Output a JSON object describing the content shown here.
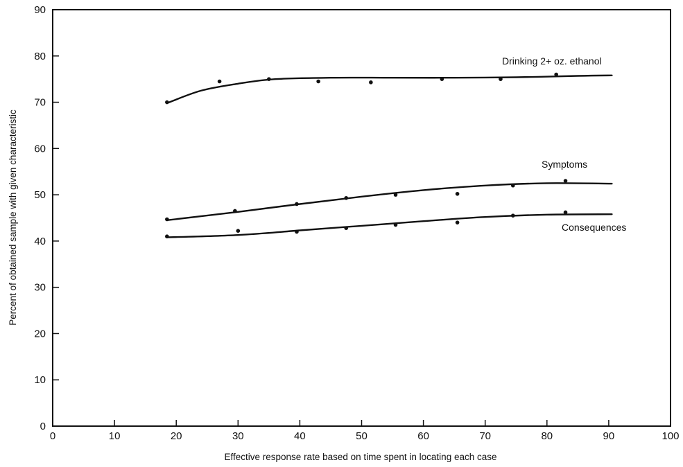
{
  "chart_data": {
    "type": "line",
    "title": "",
    "xlabel": "Effective response rate based on time spent in locating each case",
    "ylabel": "Percent of obtained sample with given characteristic",
    "xlim": [
      0,
      100
    ],
    "ylim": [
      0,
      90
    ],
    "xticks": [
      "0",
      "10",
      "20",
      "30",
      "40",
      "50",
      "60",
      "70",
      "80",
      "90",
      "100"
    ],
    "yticks": [
      "0",
      "10",
      "20",
      "30",
      "40",
      "50",
      "60",
      "70",
      "80",
      "90"
    ],
    "grid": false,
    "series": [
      {
        "name": "Drinking 2+ oz. ethanol",
        "points": [
          [
            18.5,
            70
          ],
          [
            27,
            74.5
          ],
          [
            35,
            75
          ],
          [
            43,
            74.5
          ],
          [
            51.5,
            74.3
          ],
          [
            63,
            75
          ],
          [
            72.5,
            75
          ],
          [
            81.5,
            76
          ]
        ],
        "fit": [
          [
            18.5,
            69.8
          ],
          [
            24,
            72.5
          ],
          [
            30,
            74
          ],
          [
            36,
            75
          ],
          [
            45,
            75.3
          ],
          [
            55,
            75.3
          ],
          [
            65,
            75.3
          ],
          [
            75,
            75.4
          ],
          [
            85,
            75.7
          ],
          [
            90.5,
            75.8
          ]
        ]
      },
      {
        "name": "Symptoms",
        "points": [
          [
            18.5,
            44.7
          ],
          [
            29.5,
            46.5
          ],
          [
            39.5,
            48
          ],
          [
            47.5,
            49.3
          ],
          [
            55.5,
            50
          ],
          [
            65.5,
            50.2
          ],
          [
            74.5,
            52
          ],
          [
            83,
            53
          ]
        ],
        "fit": [
          [
            18.5,
            44.5
          ],
          [
            30,
            46.3
          ],
          [
            40,
            48
          ],
          [
            50,
            49.6
          ],
          [
            60,
            51
          ],
          [
            70,
            52
          ],
          [
            80,
            52.5
          ],
          [
            90.5,
            52.4
          ]
        ]
      },
      {
        "name": "Consequences",
        "points": [
          [
            18.5,
            41
          ],
          [
            30,
            42.2
          ],
          [
            39.5,
            42
          ],
          [
            47.5,
            42.8
          ],
          [
            55.5,
            43.5
          ],
          [
            65.5,
            44
          ],
          [
            74.5,
            45.5
          ],
          [
            83,
            46.2
          ]
        ],
        "fit": [
          [
            18.5,
            40.8
          ],
          [
            30,
            41.3
          ],
          [
            40,
            42.3
          ],
          [
            50,
            43.3
          ],
          [
            60,
            44.3
          ],
          [
            70,
            45.2
          ],
          [
            80,
            45.7
          ],
          [
            90.5,
            45.8
          ]
        ]
      }
    ]
  }
}
